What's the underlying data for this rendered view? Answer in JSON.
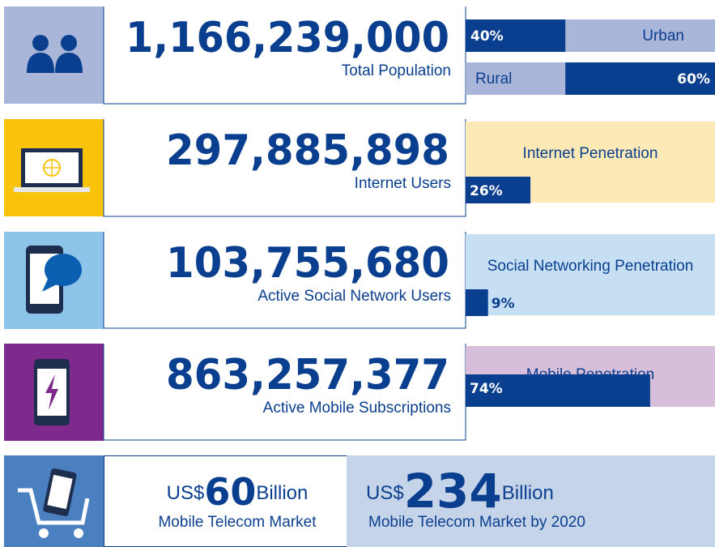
{
  "population": {
    "number": "1,166,239,000",
    "label": "Total Population",
    "split": [
      {
        "name": "Urban",
        "percent": {
          "value": 40,
          "label": "40%"
        }
      },
      {
        "name": "Rural",
        "percent": {
          "value": 60,
          "label": "60%"
        }
      }
    ]
  },
  "rows": [
    {
      "number": "297,885,898",
      "label": "Internet Users",
      "title": "Internet Penetration",
      "percent": {
        "value": 26,
        "label": "26%"
      }
    },
    {
      "number": "103,755,680",
      "label": "Active Social Network Users",
      "title": "Social Networking Penetration",
      "percent": {
        "value": 9,
        "label": "9%"
      }
    },
    {
      "number": "863,257,377",
      "label": "Active Mobile Subscriptions",
      "title": "Mobile Penetration",
      "percent": {
        "value": 74,
        "label": "74%"
      }
    }
  ],
  "market": [
    {
      "prefix": "US$",
      "amount": "60",
      "unit": "Billion",
      "label": "Mobile Telecom Market"
    },
    {
      "prefix": "US$",
      "amount": "234",
      "unit": "Billion",
      "label": "Mobile Telecom Market by 2020"
    }
  ]
}
